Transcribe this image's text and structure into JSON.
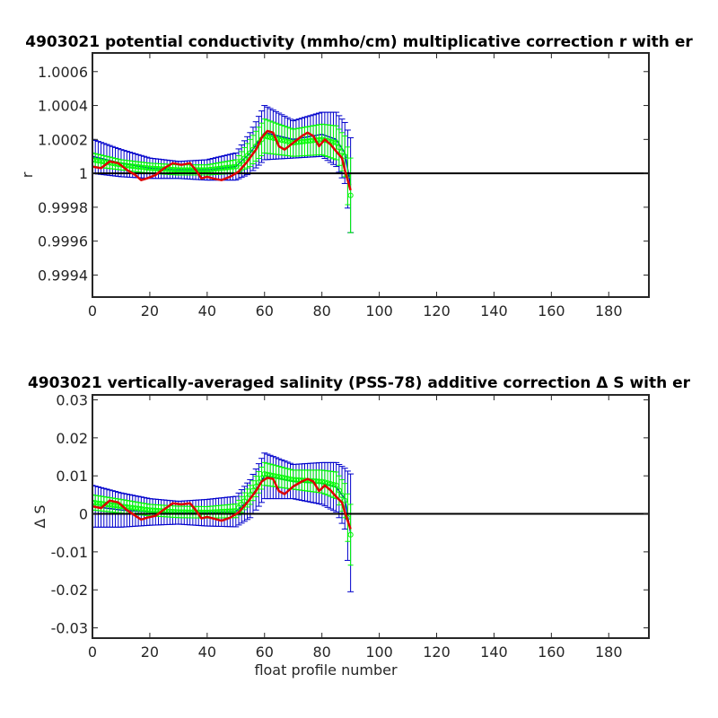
{
  "chart_data": [
    {
      "type": "line",
      "title": "4903021 potential conductivity (mmho/cm) multiplicative correction r with er",
      "xlabel": "",
      "ylabel": "r",
      "xlim": [
        0,
        194
      ],
      "ylim": [
        0.99927,
        1.00071
      ],
      "xticks": [
        0,
        20,
        40,
        60,
        80,
        100,
        120,
        140,
        160,
        180
      ],
      "yticks": [
        0.9994,
        0.9996,
        0.9998,
        1,
        1.0002,
        1.0004,
        1.0006
      ],
      "ytick_labels": [
        "0.9994",
        "0.9996",
        "0.9998",
        "1",
        "1.0002",
        "1.0004",
        "1.0006"
      ],
      "reference_line": 1,
      "colors": {
        "fit": "#0000cc",
        "fit_errorbar": "#0000cc",
        "profile": "#00ff00",
        "smoothed": "#dd0000",
        "reference": "#000000"
      },
      "fit": {
        "x": [
          0,
          10,
          20,
          30,
          40,
          50,
          55,
          60,
          70,
          80,
          85,
          88,
          90
        ],
        "y": [
          1.0001,
          1.00006,
          1.00003,
          1.00002,
          1.00002,
          1.00004,
          1.00012,
          1.00024,
          1.0002,
          1.00023,
          1.0002,
          1.00012,
          0.99993
        ],
        "err": [
          0.0001,
          8e-05,
          6e-05,
          5e-05,
          6e-05,
          8e-05,
          0.00012,
          0.00016,
          0.00011,
          0.00013,
          0.00016,
          0.00018,
          0.00028
        ]
      },
      "profile": {
        "x": [
          0,
          10,
          20,
          30,
          40,
          50,
          55,
          60,
          70,
          80,
          85,
          88,
          90
        ],
        "y": [
          1.00008,
          1.00005,
          1.00003,
          1.00002,
          1.00002,
          1.00004,
          1.00012,
          1.00022,
          1.00018,
          1.0002,
          1.00018,
          1.0001,
          0.99987
        ],
        "err": [
          4e-05,
          3e-05,
          3e-05,
          3e-05,
          3e-05,
          4e-05,
          8e-05,
          0.0001,
          8e-05,
          9e-05,
          0.0001,
          0.00012,
          0.00022
        ]
      },
      "smoothed": {
        "x": [
          0,
          3,
          6,
          9,
          12,
          15,
          17,
          19,
          22,
          25,
          28,
          31,
          34,
          36,
          38,
          40,
          42,
          45,
          48,
          51,
          54,
          57,
          59,
          61,
          63,
          65,
          67,
          70,
          73,
          75,
          77,
          79,
          81,
          83,
          85,
          87,
          88,
          89,
          90
        ],
        "y": [
          1.00004,
          1.00003,
          1.00007,
          1.00006,
          1.00002,
          0.99999,
          0.99996,
          0.99997,
          0.99999,
          1.00003,
          1.00006,
          1.00005,
          1.00006,
          1.00002,
          0.99997,
          0.99998,
          0.99997,
          0.99996,
          0.99998,
          1.00001,
          1.00007,
          1.00014,
          1.00021,
          1.00025,
          1.00024,
          1.00016,
          1.00014,
          1.00018,
          1.00022,
          1.00024,
          1.00022,
          1.00016,
          1.0002,
          1.00017,
          1.00013,
          1.00009,
          1.00002,
          0.99996,
          0.9999
        ]
      }
    },
    {
      "type": "line",
      "title": "4903021 vertically-averaged salinity (PSS-78) additive correction Δ S with er",
      "xlabel": "float profile number",
      "ylabel": "Δ S",
      "xlim": [
        0,
        194
      ],
      "ylim": [
        -0.0327,
        0.0313
      ],
      "xticks": [
        0,
        20,
        40,
        60,
        80,
        100,
        120,
        140,
        160,
        180
      ],
      "yticks": [
        -0.03,
        -0.02,
        -0.01,
        0,
        0.01,
        0.02,
        0.03
      ],
      "ytick_labels": [
        "-0.03",
        "-0.02",
        "-0.01",
        "0",
        "0.01",
        "0.02",
        "0.03"
      ],
      "reference_line": 0,
      "colors": {
        "fit": "#0000cc",
        "fit_errorbar": "#0000cc",
        "profile": "#00ff00",
        "smoothed": "#dd0000",
        "reference": "#000000"
      },
      "fit": {
        "x": [
          0,
          10,
          20,
          30,
          40,
          50,
          55,
          60,
          70,
          80,
          85,
          88,
          90
        ],
        "y": [
          0.002,
          0.001,
          0.0005,
          0.0003,
          0.0003,
          0.0006,
          0.004,
          0.01,
          0.0085,
          0.008,
          0.007,
          0.004,
          -0.005
        ],
        "err": [
          0.0055,
          0.0045,
          0.0035,
          0.003,
          0.0035,
          0.004,
          0.005,
          0.006,
          0.0045,
          0.0055,
          0.0065,
          0.008,
          0.0155
        ]
      },
      "profile": {
        "x": [
          0,
          10,
          20,
          30,
          40,
          50,
          55,
          60,
          70,
          80,
          85,
          88,
          90
        ],
        "y": [
          0.003,
          0.002,
          0.001,
          0.0005,
          0.0004,
          0.0008,
          0.005,
          0.0105,
          0.009,
          0.0085,
          0.0075,
          0.0035,
          -0.0055
        ],
        "err": [
          0.002,
          0.0018,
          0.0015,
          0.0015,
          0.0015,
          0.0018,
          0.0025,
          0.003,
          0.0025,
          0.003,
          0.0035,
          0.0045,
          0.008
        ]
      },
      "smoothed": {
        "x": [
          0,
          3,
          6,
          9,
          12,
          15,
          17,
          19,
          22,
          25,
          28,
          31,
          34,
          36,
          38,
          40,
          42,
          45,
          48,
          51,
          54,
          57,
          59,
          61,
          63,
          65,
          67,
          70,
          73,
          75,
          77,
          79,
          81,
          83,
          85,
          87,
          88,
          89,
          90
        ],
        "y": [
          0.002,
          0.0015,
          0.0035,
          0.003,
          0.001,
          -0.0005,
          -0.0015,
          -0.001,
          -0.0005,
          0.0012,
          0.0028,
          0.0025,
          0.0028,
          0.001,
          -0.0012,
          -0.0008,
          -0.0012,
          -0.0018,
          -0.001,
          0.0004,
          0.003,
          0.006,
          0.0085,
          0.0095,
          0.0092,
          0.006,
          0.0052,
          0.0072,
          0.0085,
          0.0092,
          0.0085,
          0.006,
          0.0075,
          0.0062,
          0.0045,
          0.003,
          0.0005,
          -0.0018,
          -0.004
        ]
      }
    }
  ]
}
